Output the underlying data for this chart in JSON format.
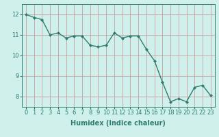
{
  "x": [
    0,
    1,
    2,
    3,
    4,
    5,
    6,
    7,
    8,
    9,
    10,
    11,
    12,
    13,
    14,
    15,
    16,
    17,
    18,
    19,
    20,
    21,
    22,
    23
  ],
  "y": [
    12.0,
    11.85,
    11.75,
    11.0,
    11.1,
    10.85,
    10.95,
    10.95,
    10.5,
    10.42,
    10.5,
    11.1,
    10.85,
    10.95,
    10.95,
    10.3,
    9.75,
    8.7,
    7.75,
    7.9,
    7.75,
    8.45,
    8.55,
    8.05
  ],
  "line_color": "#2e7d6e",
  "marker": "D",
  "marker_size": 2.0,
  "linewidth": 1.0,
  "background_color": "#cff0eb",
  "grid_color_major": "#c8b8b8",
  "grid_color_minor": "#d8e8e5",
  "xlabel": "Humidex (Indice chaleur)",
  "xlabel_fontsize": 7,
  "tick_color": "#2e7d6e",
  "tick_fontsize": 6,
  "ylim": [
    7.5,
    12.5
  ],
  "xlim": [
    -0.5,
    23.5
  ],
  "yticks": [
    8,
    9,
    10,
    11,
    12
  ],
  "xticks": [
    0,
    1,
    2,
    3,
    4,
    5,
    6,
    7,
    8,
    9,
    10,
    11,
    12,
    13,
    14,
    15,
    16,
    17,
    18,
    19,
    20,
    21,
    22,
    23
  ]
}
